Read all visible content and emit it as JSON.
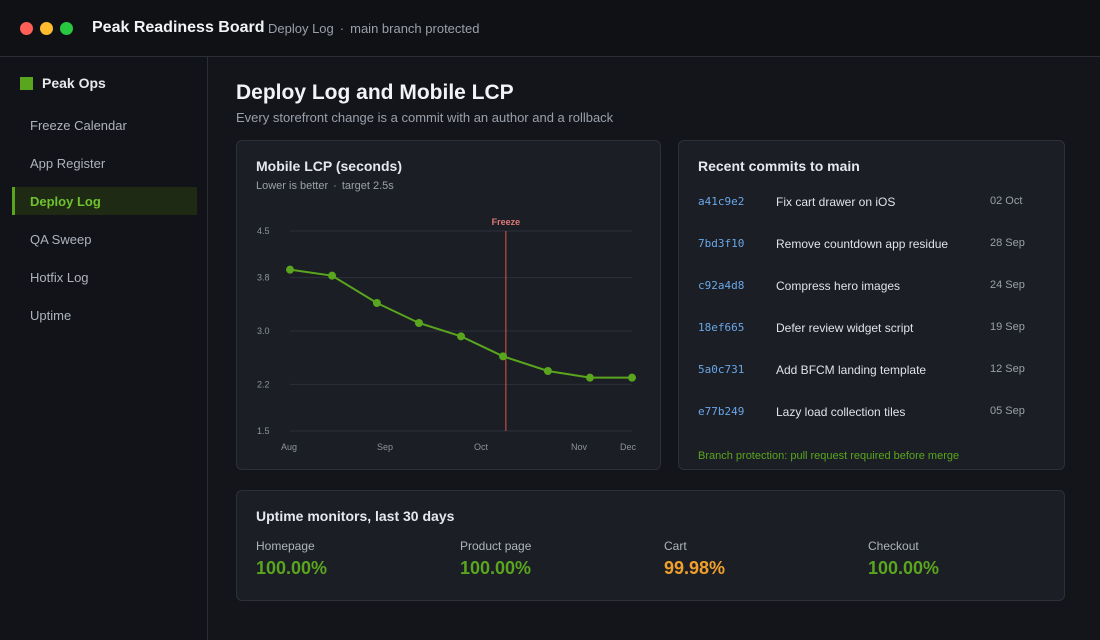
{
  "window": {
    "title": "Peak Readiness Board",
    "breadcrumb": [
      "Deploy Log",
      "main branch protected"
    ],
    "breadcrumb_separator": "·"
  },
  "sidebar": {
    "brand": "Peak Ops",
    "brand_color": "#5aa51e",
    "items": [
      {
        "label": "Freeze Calendar",
        "active": false
      },
      {
        "label": "App Register",
        "active": false
      },
      {
        "label": "Deploy Log",
        "active": true
      },
      {
        "label": "QA Sweep",
        "active": false
      },
      {
        "label": "Hotfix Log",
        "active": false
      },
      {
        "label": "Uptime",
        "active": false
      }
    ]
  },
  "page": {
    "title": "Deploy Log and Mobile LCP",
    "subtitle": "Every storefront change is a commit with an author and a rollback"
  },
  "chart": {
    "title": "Mobile LCP (seconds)",
    "note": "Lower is better",
    "note_separator": "·",
    "target": "target 2.5s"
  },
  "chart_data": {
    "type": "line",
    "title": "Mobile LCP (seconds)",
    "x_ticks": [
      "Aug",
      "Sep",
      "Oct",
      "Nov",
      "Dec"
    ],
    "y_ticks": [
      4.5,
      3.8,
      3.0,
      2.2,
      1.5
    ],
    "ylim": [
      1.5,
      4.5
    ],
    "xlim": [
      "2024-08-01",
      "2024-12-01"
    ],
    "grid": true,
    "series": [
      {
        "color": "#5aa51e",
        "points": [
          {
            "x": "2024-08-01",
            "y": 3.92
          },
          {
            "x": "2024-08-16",
            "y": 3.83
          },
          {
            "x": "2024-09-01",
            "y": 3.42
          },
          {
            "x": "2024-09-16",
            "y": 3.12
          },
          {
            "x": "2024-10-01",
            "y": 2.92
          },
          {
            "x": "2024-10-16",
            "y": 2.62
          },
          {
            "x": "2024-11-01",
            "y": 2.4
          },
          {
            "x": "2024-11-16",
            "y": 2.3
          },
          {
            "x": "2024-12-01",
            "y": 2.3
          }
        ]
      }
    ],
    "annotations": [
      {
        "type": "vline",
        "x": "2024-10-17",
        "label": "Freeze",
        "color": "#d9534f"
      }
    ]
  },
  "commits": {
    "title": "Recent commits to main",
    "items": [
      {
        "hash": "a41c9e2",
        "message": "Fix cart drawer on iOS",
        "date": "02 Oct"
      },
      {
        "hash": "7bd3f10",
        "message": "Remove countdown app residue",
        "date": "28 Sep"
      },
      {
        "hash": "c92a4d8",
        "message": "Compress hero images",
        "date": "24 Sep"
      },
      {
        "hash": "18ef665",
        "message": "Defer review widget script",
        "date": "19 Sep"
      },
      {
        "hash": "5a0c731",
        "message": "Add BFCM landing template",
        "date": "12 Sep"
      },
      {
        "hash": "e77b249",
        "message": "Lazy load collection tiles",
        "date": "05 Sep"
      }
    ],
    "note": "Branch protection: pull request required before merge"
  },
  "uptime": {
    "title": "Uptime monitors, last 30 days",
    "monitors": [
      {
        "name": "Homepage",
        "value": "100.00%",
        "color": "#5aa51e"
      },
      {
        "name": "Product page",
        "value": "100.00%",
        "color": "#5aa51e"
      },
      {
        "name": "Cart",
        "value": "99.98%",
        "color": "#f0a02a"
      },
      {
        "name": "Checkout",
        "value": "100.00%",
        "color": "#5aa51e"
      }
    ]
  }
}
